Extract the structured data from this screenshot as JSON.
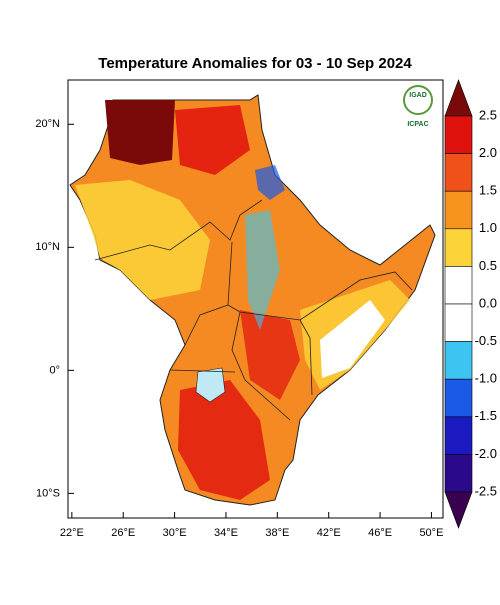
{
  "title": "Temperature Anomalies for 03 - 10 Sep 2024",
  "logo": {
    "top": "IGAD",
    "bottom": "ICPAC"
  },
  "map": {
    "xlim": [
      21.7,
      50.9
    ],
    "ylim": [
      -12.0,
      23.6
    ],
    "xticks": [
      {
        "value": 22,
        "label": "22°E"
      },
      {
        "value": 26,
        "label": "26°E"
      },
      {
        "value": 30,
        "label": "30°E"
      },
      {
        "value": 34,
        "label": "34°E"
      },
      {
        "value": 38,
        "label": "38°E"
      },
      {
        "value": 42,
        "label": "42°E"
      },
      {
        "value": 46,
        "label": "46°E"
      },
      {
        "value": 50,
        "label": "50°E"
      }
    ],
    "yticks": [
      {
        "value": 20,
        "label": "20°N"
      },
      {
        "value": 10,
        "label": "10°N"
      },
      {
        "value": 0,
        "label": "0°"
      },
      {
        "value": -10,
        "label": "10°S"
      }
    ]
  },
  "colorbar": {
    "ticks": [
      {
        "value": 2.5,
        "label": "2.5"
      },
      {
        "value": 2,
        "label": "2.0"
      },
      {
        "value": 1.5,
        "label": "1.5"
      },
      {
        "value": 1,
        "label": "1.0"
      },
      {
        "value": 0.5,
        "label": "0.5"
      },
      {
        "value": 0,
        "label": "0.0"
      },
      {
        "value": -0.5,
        "label": "-0.5"
      },
      {
        "value": -1,
        "label": "-1.0"
      },
      {
        "value": -1.5,
        "label": "-1.5"
      },
      {
        "value": -2,
        "label": "-2.0"
      },
      {
        "value": -2.5,
        "label": "-2.5"
      }
    ],
    "colors": [
      "#7a0a0a",
      "#e0120e",
      "#f0501a",
      "#f79420",
      "#fdd33a",
      "#ffffff",
      "#ffffff",
      "#3ec4f0",
      "#1a5ae6",
      "#1a1ac0",
      "#2a0a8a",
      "#3a0050"
    ]
  }
}
